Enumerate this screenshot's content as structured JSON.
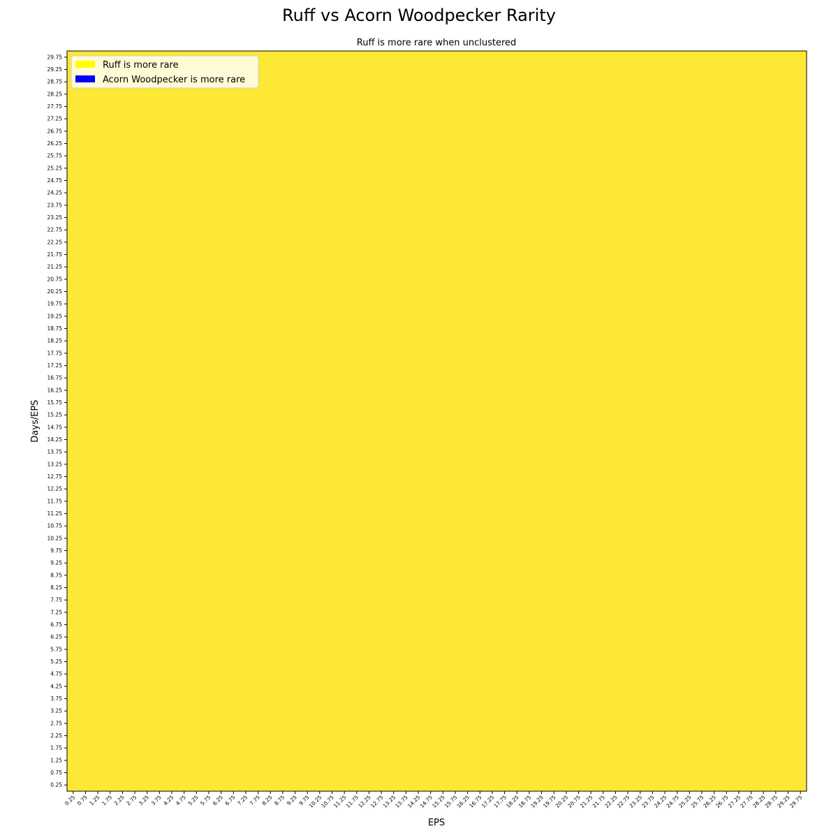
{
  "chart_data": {
    "type": "heatmap",
    "title": "Ruff vs Acorn Woodpecker Rarity",
    "subtitle": "Ruff is more rare when unclustered",
    "xlabel": "EPS",
    "ylabel": "Days/EPS",
    "x_ticks": [
      "0.25",
      "0.75",
      "1.25",
      "1.75",
      "2.25",
      "2.75",
      "3.25",
      "3.75",
      "4.25",
      "4.75",
      "5.25",
      "5.75",
      "6.25",
      "6.75",
      "7.25",
      "7.75",
      "8.25",
      "8.75",
      "9.25",
      "9.75",
      "10.25",
      "10.75",
      "11.25",
      "11.75",
      "12.25",
      "12.75",
      "13.25",
      "13.75",
      "14.25",
      "14.75",
      "15.25",
      "15.75",
      "16.25",
      "16.75",
      "17.25",
      "17.75",
      "18.25",
      "18.75",
      "19.25",
      "19.75",
      "20.25",
      "20.75",
      "21.25",
      "21.75",
      "22.25",
      "22.75",
      "23.25",
      "23.75",
      "24.25",
      "24.75",
      "25.25",
      "25.75",
      "26.25",
      "26.75",
      "27.25",
      "27.75",
      "28.25",
      "28.75",
      "29.25",
      "29.75"
    ],
    "y_ticks": [
      "0.25",
      "0.75",
      "1.25",
      "1.75",
      "2.25",
      "2.75",
      "3.25",
      "3.75",
      "4.25",
      "4.75",
      "5.25",
      "5.75",
      "6.25",
      "6.75",
      "7.25",
      "7.75",
      "8.25",
      "8.75",
      "9.25",
      "9.75",
      "10.25",
      "10.75",
      "11.25",
      "11.75",
      "12.25",
      "12.75",
      "13.25",
      "13.75",
      "14.25",
      "14.75",
      "15.25",
      "15.75",
      "16.25",
      "16.75",
      "17.25",
      "17.75",
      "18.25",
      "18.75",
      "19.25",
      "19.75",
      "20.25",
      "20.75",
      "21.25",
      "21.75",
      "22.25",
      "22.75",
      "23.25",
      "23.75",
      "24.25",
      "24.75",
      "25.25",
      "25.75",
      "26.25",
      "26.75",
      "27.25",
      "27.75",
      "28.25",
      "28.75",
      "29.25",
      "29.75"
    ],
    "xlim": [
      0,
      30
    ],
    "ylim": [
      0,
      30
    ],
    "cell_value_all": "Ruff is more rare",
    "fill_color": "#fde835",
    "legend": {
      "placement": "top-left",
      "entries": [
        {
          "label": "Ruff is more rare",
          "color": "#ffff00"
        },
        {
          "label": "Acorn Woodpecker is more rare",
          "color": "#0000ff"
        }
      ]
    }
  }
}
